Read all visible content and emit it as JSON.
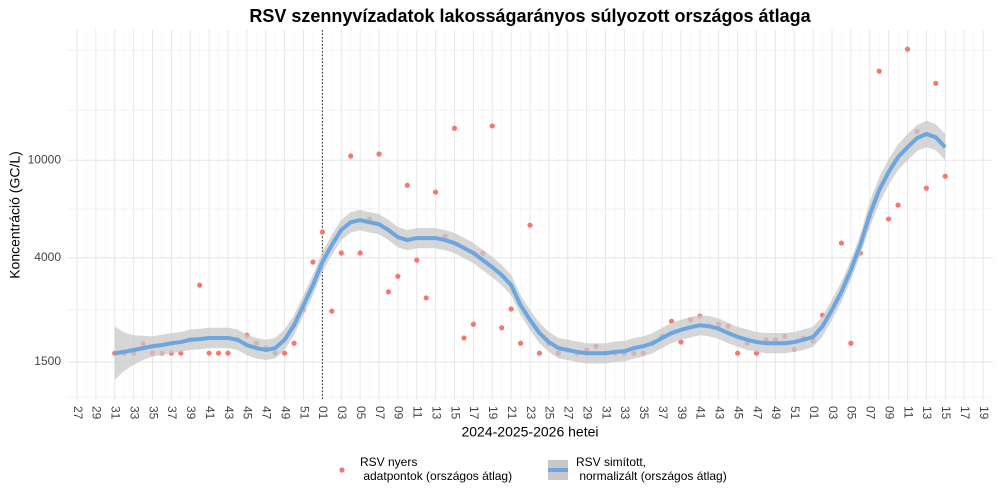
{
  "chart_data": {
    "type": "line",
    "title": "RSV szennyvízadatok lakosságarányos súlyozott országos átlaga",
    "x_label": "2024-2025-2026 hetei",
    "y_label": "Koncentráció (GC/L)",
    "log_scale": true,
    "grid": true,
    "legend": "bottom",
    "ylim": [
      1050,
      34000
    ],
    "yticks": [
      1500,
      4000,
      10000
    ],
    "categories": [
      "27",
      null,
      "29",
      null,
      "31",
      null,
      "33",
      null,
      "35",
      null,
      "37",
      null,
      "39",
      null,
      "41",
      null,
      "43",
      null,
      "45",
      null,
      "47",
      null,
      "49",
      null,
      "51",
      null,
      "01",
      null,
      "03",
      null,
      "05",
      null,
      "07",
      null,
      "09",
      null,
      "11",
      null,
      "13",
      null,
      "15",
      null,
      "17",
      null,
      "19",
      null,
      "21",
      null,
      "23",
      null,
      "25",
      null,
      "27",
      null,
      "29",
      null,
      "31",
      null,
      "33",
      null,
      "35",
      null,
      "37",
      null,
      "39",
      null,
      "41",
      null,
      "43",
      null,
      "45",
      null,
      "47",
      null,
      "49",
      null,
      "51",
      null,
      "01",
      null,
      "03",
      null,
      "05",
      null,
      "07",
      null,
      "09",
      null,
      "11",
      null,
      "13",
      null,
      "15",
      null,
      "17",
      null,
      "19"
    ],
    "series": [
      {
        "name": "RSV nyers\n adatpontok (országos átlag)",
        "type": "scatter",
        "color": "#F8766D",
        "values": [
          null,
          null,
          null,
          null,
          1630,
          1630,
          1630,
          1780,
          1630,
          1630,
          1630,
          1630,
          1850,
          3090,
          1630,
          1630,
          1630,
          1850,
          1930,
          1790,
          1710,
          1630,
          1630,
          1790,
          2450,
          3840,
          5090,
          2420,
          4180,
          10400,
          4180,
          5750,
          10600,
          2900,
          3360,
          7900,
          3910,
          2740,
          7410,
          4900,
          13500,
          1880,
          2140,
          4180,
          13800,
          2070,
          2470,
          1790,
          5430,
          1630,
          1790,
          1630,
          1680,
          1630,
          1680,
          1740,
          1630,
          1630,
          1630,
          1630,
          1630,
          1790,
          1910,
          2200,
          1810,
          2230,
          2310,
          2100,
          2140,
          2100,
          1630,
          1790,
          1630,
          1850,
          1850,
          1910,
          1690,
          1880,
          1830,
          2330,
          null,
          4590,
          1790,
          4180,
          5890,
          23100,
          5750,
          6560,
          28400,
          13100,
          7690,
          20600,
          8600,
          null,
          null,
          null,
          null
        ]
      },
      {
        "name": "RSV simított,\n normalizált (országos átlag)",
        "type": "line",
        "color": "#6CA6E0",
        "band_color": "#C8C8C8",
        "values": [
          null,
          null,
          null,
          null,
          1630,
          1650,
          1680,
          1710,
          1740,
          1760,
          1790,
          1810,
          1850,
          1860,
          1880,
          1880,
          1880,
          1850,
          1760,
          1710,
          1680,
          1710,
          1850,
          2120,
          2560,
          3090,
          3840,
          4510,
          5190,
          5580,
          5700,
          5580,
          5480,
          5190,
          4850,
          4720,
          4810,
          4810,
          4810,
          4720,
          4590,
          4380,
          4180,
          3910,
          3660,
          3400,
          3090,
          2560,
          2230,
          1970,
          1810,
          1710,
          1680,
          1650,
          1630,
          1630,
          1630,
          1650,
          1660,
          1710,
          1740,
          1790,
          1880,
          1970,
          2030,
          2080,
          2120,
          2100,
          2050,
          1970,
          1900,
          1850,
          1810,
          1790,
          1790,
          1790,
          1810,
          1850,
          1900,
          2100,
          2450,
          2900,
          3560,
          4510,
          6000,
          7550,
          8950,
          10300,
          11300,
          12300,
          12800,
          12400,
          11300,
          null,
          null,
          null,
          null
        ],
        "lower": [
          null,
          null,
          null,
          null,
          1270,
          1380,
          1460,
          1530,
          1580,
          1600,
          1630,
          1650,
          1680,
          1690,
          1710,
          1710,
          1710,
          1680,
          1600,
          1550,
          1530,
          1550,
          1680,
          1930,
          2330,
          2810,
          3490,
          4100,
          4720,
          5070,
          5180,
          5070,
          4980,
          4720,
          4410,
          4290,
          4370,
          4370,
          4370,
          4290,
          4170,
          3980,
          3800,
          3550,
          3330,
          3090,
          2810,
          2330,
          2030,
          1790,
          1650,
          1550,
          1530,
          1500,
          1480,
          1480,
          1480,
          1500,
          1510,
          1550,
          1580,
          1630,
          1710,
          1790,
          1850,
          1890,
          1930,
          1910,
          1860,
          1790,
          1730,
          1680,
          1650,
          1630,
          1630,
          1630,
          1650,
          1680,
          1730,
          1910,
          2230,
          2640,
          3240,
          4100,
          5310,
          6680,
          7920,
          9120,
          10000,
          10900,
          11300,
          11000,
          10000,
          null,
          null,
          null,
          null
        ],
        "upper": [
          null,
          null,
          null,
          null,
          2090,
          1980,
          1930,
          1920,
          1910,
          1940,
          1970,
          1990,
          2040,
          2050,
          2070,
          2070,
          2070,
          2040,
          1940,
          1880,
          1850,
          1880,
          2040,
          2330,
          2820,
          3400,
          4220,
          4960,
          5710,
          6140,
          6270,
          6140,
          6030,
          5710,
          5340,
          5190,
          5290,
          5290,
          5290,
          5190,
          5050,
          4820,
          4600,
          4300,
          4030,
          3740,
          3400,
          2820,
          2450,
          2170,
          1990,
          1880,
          1850,
          1820,
          1790,
          1790,
          1790,
          1820,
          1830,
          1880,
          1910,
          1970,
          2070,
          2170,
          2230,
          2290,
          2330,
          2310,
          2260,
          2170,
          2090,
          2040,
          1990,
          1970,
          1970,
          1970,
          1990,
          2040,
          2090,
          2310,
          2700,
          3190,
          3920,
          4960,
          6780,
          8530,
          10100,
          11600,
          12800,
          13900,
          14500,
          14000,
          12800,
          null,
          null,
          null,
          null
        ]
      }
    ]
  }
}
